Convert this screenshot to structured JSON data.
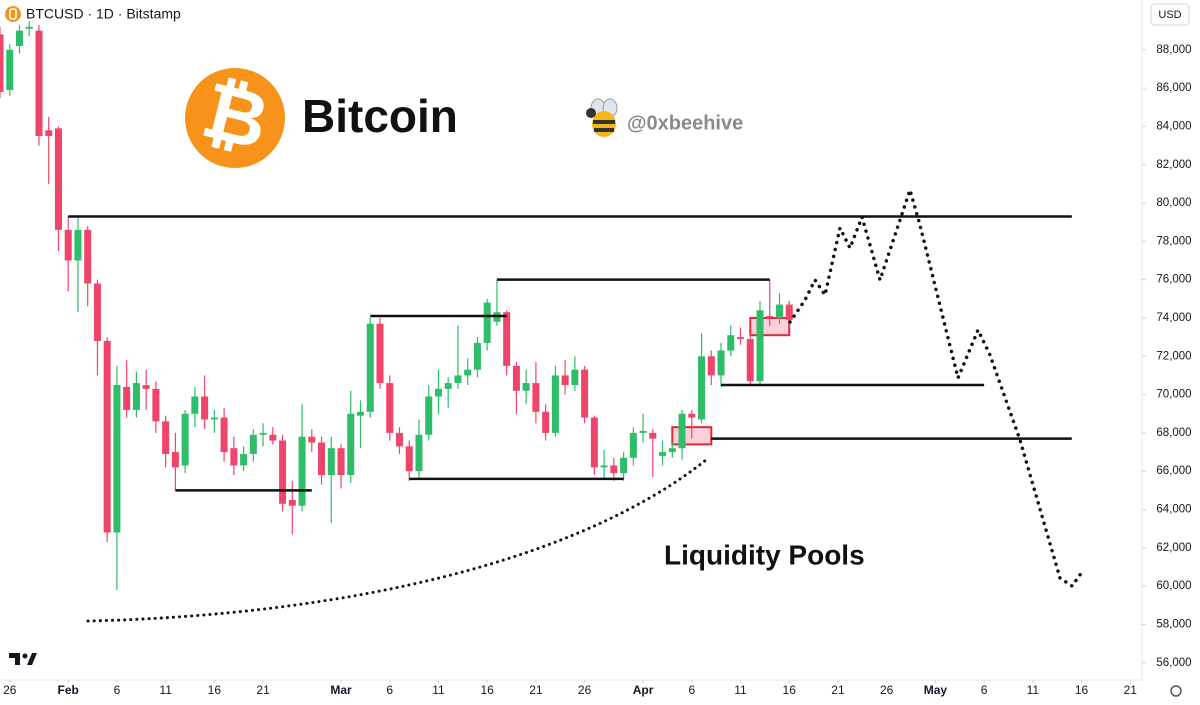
{
  "chart_data": {
    "type": "candlestick",
    "header": "BTCUSD · 1D · Bitstamp",
    "currency": "USD",
    "title": "Bitcoin",
    "logo": "₿",
    "author": "@0xbeehive",
    "annotation": "Liquidity Pools",
    "up_color": "#2ebd68",
    "down_color": "#f0456a",
    "x": [
      "Jan 25",
      "Jan 26",
      "Jan 27",
      "Jan 28",
      "Jan 29",
      "Jan 30",
      "Jan 31",
      "Feb 1",
      "Feb 2",
      "Feb 3",
      "Feb 4",
      "Feb 5",
      "Feb 6",
      "Feb 7",
      "Feb 8",
      "Feb 9",
      "Feb 10",
      "Feb 11",
      "Feb 12",
      "Feb 13",
      "Feb 14",
      "Feb 15",
      "Feb 16",
      "Feb 17",
      "Feb 18",
      "Feb 19",
      "Feb 20",
      "Feb 21",
      "Feb 22",
      "Feb 23",
      "Feb 24",
      "Feb 25",
      "Feb 26",
      "Feb 27",
      "Feb 28",
      "Mar 1",
      "Mar 2",
      "Mar 3",
      "Mar 4",
      "Mar 5",
      "Mar 6",
      "Mar 7",
      "Mar 8",
      "Mar 9",
      "Mar 10",
      "Mar 11",
      "Mar 12",
      "Mar 13",
      "Mar 14",
      "Mar 15",
      "Mar 16",
      "Mar 17",
      "Mar 18",
      "Mar 19",
      "Mar 20",
      "Mar 21",
      "Mar 22",
      "Mar 23",
      "Mar 24",
      "Mar 25",
      "Mar 26",
      "Mar 27",
      "Mar 28",
      "Mar 29",
      "Mar 30",
      "Mar 31",
      "Apr 1",
      "Apr 2",
      "Apr 3",
      "Apr 4",
      "Apr 5",
      "Apr 6",
      "Apr 7",
      "Apr 8",
      "Apr 9",
      "Apr 10",
      "Apr 11",
      "Apr 12",
      "Apr 13",
      "Apr 14",
      "Apr 15",
      "Apr 16"
    ],
    "open": [
      88800,
      85900,
      88200,
      89100,
      89000,
      83800,
      83900,
      78600,
      77000,
      78600,
      75800,
      72800,
      62800,
      70400,
      69200,
      70500,
      70300,
      68600,
      67000,
      66300,
      69000,
      69900,
      68700,
      68800,
      67200,
      66300,
      66900,
      67900,
      67900,
      67600,
      64500,
      64200,
      67800,
      67500,
      65800,
      67200,
      65800,
      68900,
      69100,
      73700,
      70600,
      68000,
      67300,
      66000,
      67900,
      69900,
      70300,
      70600,
      71000,
      71300,
      72700,
      73800,
      74300,
      71500,
      70200,
      70600,
      69100,
      68000,
      71000,
      70500,
      71300,
      68800,
      66200,
      66300,
      65900,
      66700,
      68000,
      68000,
      66800,
      67000,
      67200,
      69000,
      68700,
      72000,
      71000,
      72300,
      73000,
      72900,
      70700,
      74100,
      74000,
      74700
    ],
    "high": [
      89200,
      88300,
      89300,
      89500,
      89300,
      84500,
      84000,
      79300,
      79300,
      78800,
      76000,
      73000,
      71500,
      71800,
      71200,
      71300,
      70700,
      68900,
      68000,
      69200,
      70400,
      71000,
      69200,
      69300,
      67800,
      67300,
      68200,
      68500,
      68300,
      67900,
      65500,
      69500,
      68200,
      67800,
      67800,
      67400,
      70200,
      69700,
      74000,
      74000,
      71000,
      68300,
      67600,
      68700,
      70500,
      71300,
      70900,
      73600,
      71900,
      73000,
      75000,
      76000,
      74400,
      71700,
      71300,
      71700,
      69500,
      71500,
      71800,
      72000,
      71500,
      68900,
      67100,
      66700,
      67000,
      68300,
      69000,
      68200,
      67600,
      67500,
      69200,
      69200,
      73200,
      72300,
      72700,
      73600,
      73500,
      73200,
      74900,
      76000,
      75300,
      74900
    ],
    "low": [
      85500,
      85600,
      87800,
      88700,
      83000,
      81000,
      77500,
      75400,
      74300,
      74600,
      71000,
      62300,
      59800,
      68800,
      68800,
      69200,
      68000,
      66200,
      65000,
      65900,
      68300,
      68200,
      68000,
      66500,
      65800,
      66000,
      66500,
      67300,
      67400,
      63900,
      62700,
      63900,
      67000,
      65300,
      63300,
      65100,
      65400,
      67200,
      68800,
      70300,
      67600,
      66900,
      65500,
      65600,
      67600,
      69000,
      69300,
      70300,
      70500,
      70900,
      72300,
      73600,
      71000,
      69000,
      69500,
      68500,
      67600,
      67800,
      70000,
      70200,
      68500,
      65800,
      65600,
      65500,
      65500,
      66300,
      67500,
      65700,
      66300,
      66700,
      66600,
      67700,
      68500,
      70500,
      70400,
      72000,
      72600,
      70500,
      70500,
      73600,
      73700,
      73500
    ],
    "close": [
      85800,
      88000,
      89000,
      89200,
      83500,
      83500,
      78600,
      77000,
      78600,
      75800,
      72800,
      62800,
      70500,
      69200,
      70600,
      70300,
      68600,
      66900,
      66200,
      69000,
      69900,
      68700,
      68800,
      67000,
      66300,
      66900,
      67900,
      68000,
      67600,
      64300,
      64200,
      67800,
      67500,
      65800,
      67200,
      65800,
      69000,
      69100,
      73700,
      70600,
      68000,
      67300,
      66000,
      67900,
      69900,
      70300,
      70600,
      71000,
      71300,
      72700,
      74800,
      74300,
      71500,
      70200,
      70600,
      69100,
      68000,
      71000,
      70500,
      71300,
      68800,
      66200,
      66300,
      65900,
      66700,
      68000,
      68100,
      67700,
      67000,
      67200,
      69000,
      68800,
      72000,
      71000,
      72300,
      73100,
      72900,
      70700,
      74400,
      74000,
      74700,
      73900
    ],
    "levels": [
      {
        "value": 79300,
        "from": "Feb 1",
        "to": "May 15"
      },
      {
        "value": 76000,
        "from": "Mar 17",
        "to": "Apr 14"
      },
      {
        "value": 74100,
        "from": "Mar 4",
        "to": "Mar 18"
      },
      {
        "value": 65000,
        "from": "Feb 12",
        "to": "Feb 26"
      },
      {
        "value": 65600,
        "from": "Mar 8",
        "to": "Mar 30"
      },
      {
        "value": 70500,
        "from": "Apr 9",
        "to": "May 6"
      },
      {
        "value": 67700,
        "from": "Apr 8",
        "to": "May 15"
      }
    ],
    "zones": [
      {
        "from": "Apr 4",
        "to": "Apr 8",
        "low": 67400,
        "high": 68300
      },
      {
        "from": "Apr 12",
        "to": "Apr 16",
        "low": 73100,
        "high": 74000
      }
    ],
    "xlim": [
      "Jan 25",
      "May 22"
    ],
    "xticks": [
      {
        "value": "Jan 26",
        "label": "26"
      },
      {
        "value": "Feb 1",
        "label": "Feb"
      },
      {
        "value": "Feb 6",
        "label": "6"
      },
      {
        "value": "Feb 11",
        "label": "11"
      },
      {
        "value": "Feb 16",
        "label": "16"
      },
      {
        "value": "Feb 21",
        "label": "21"
      },
      {
        "value": "Mar 1",
        "label": "Mar"
      },
      {
        "value": "Mar 6",
        "label": "6"
      },
      {
        "value": "Mar 11",
        "label": "11"
      },
      {
        "value": "Mar 16",
        "label": "16"
      },
      {
        "value": "Mar 21",
        "label": "21"
      },
      {
        "value": "Mar 26",
        "label": "26"
      },
      {
        "value": "Apr 1",
        "label": "Apr"
      },
      {
        "value": "Apr 6",
        "label": "6"
      },
      {
        "value": "Apr 11",
        "label": "11"
      },
      {
        "value": "Apr 16",
        "label": "16"
      },
      {
        "value": "Apr 21",
        "label": "21"
      },
      {
        "value": "Apr 26",
        "label": "26"
      },
      {
        "value": "May 1",
        "label": "May"
      },
      {
        "value": "May 6",
        "label": "6"
      },
      {
        "value": "May 11",
        "label": "11"
      },
      {
        "value": "May 16",
        "label": "16"
      },
      {
        "value": "May 21",
        "label": "21"
      }
    ],
    "ylim": [
      55100,
      90600
    ],
    "yticks": [
      {
        "value": 56000,
        "label": "56,000"
      },
      {
        "value": 58000,
        "label": "58,000"
      },
      {
        "value": 60000,
        "label": "60,000"
      },
      {
        "value": 62000,
        "label": "62,000"
      },
      {
        "value": 64000,
        "label": "64,000"
      },
      {
        "value": 66000,
        "label": "66,000"
      },
      {
        "value": 68000,
        "label": "68,000"
      },
      {
        "value": 70000,
        "label": "70,000"
      },
      {
        "value": 72000,
        "label": "72,000"
      },
      {
        "value": 74000,
        "label": "74,000"
      },
      {
        "value": 76000,
        "label": "76,000"
      },
      {
        "value": 78000,
        "label": "78,000"
      },
      {
        "value": 80000,
        "label": "80,000"
      },
      {
        "value": 82000,
        "label": "82,000"
      },
      {
        "value": 84000,
        "label": "84,000"
      },
      {
        "value": 86000,
        "label": "86,000"
      },
      {
        "value": 88000,
        "label": "88,000"
      }
    ]
  }
}
